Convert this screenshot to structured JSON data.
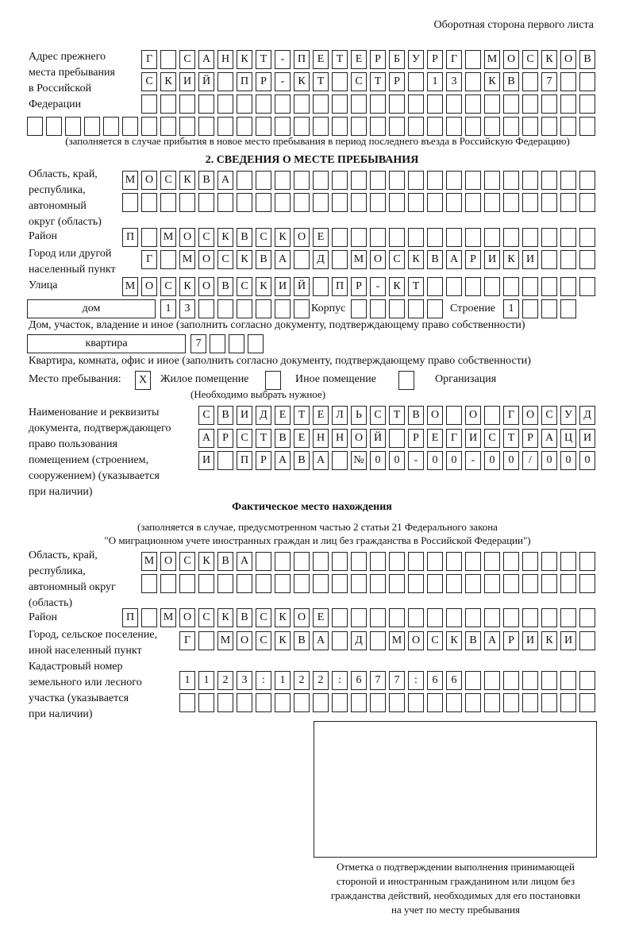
{
  "header": {
    "page_side": "Оборотная сторона первого листа"
  },
  "prev_address": {
    "label": [
      "Адрес прежнего",
      "места пребывания",
      "в Российской",
      "Федерации"
    ],
    "rows": [
      [
        "Г",
        "",
        "С",
        "А",
        "Н",
        "К",
        "Т",
        "-",
        "П",
        "Е",
        "Т",
        "Е",
        "Р",
        "Б",
        "У",
        "Р",
        "Г",
        "",
        "М",
        "О",
        "С",
        "К",
        "О",
        "В"
      ],
      [
        "С",
        "К",
        "И",
        "Й",
        "",
        "П",
        "Р",
        "-",
        "К",
        "Т",
        "",
        "С",
        "Т",
        "Р",
        "",
        "1",
        "3",
        "",
        "К",
        "В",
        "",
        "7",
        "",
        ""
      ],
      [
        "",
        "",
        "",
        "",
        "",
        "",
        "",
        "",
        "",
        "",
        "",
        "",
        "",
        "",
        "",
        "",
        "",
        "",
        "",
        "",
        "",
        "",
        "",
        ""
      ],
      [
        "",
        "",
        "",
        "",
        "",
        "",
        "",
        "",
        "",
        "",
        "",
        "",
        "",
        "",
        "",
        "",
        "",
        "",
        "",
        "",
        "",
        "",
        "",
        "",
        "",
        "",
        "",
        "",
        "",
        ""
      ]
    ],
    "note": "(заполняется в случае прибытия в новое место пребывания в период последнего въезда в Российскую Федерацию)"
  },
  "section2": {
    "title": "2. СВЕДЕНИЯ О МЕСТЕ ПРЕБЫВАНИЯ",
    "region_label": [
      "Область, край,",
      "республика,",
      "автономный",
      "округ (область)"
    ],
    "region_rows": [
      [
        "М",
        "О",
        "С",
        "К",
        "В",
        "А",
        "",
        "",
        "",
        "",
        "",
        "",
        "",
        "",
        "",
        "",
        "",
        "",
        "",
        "",
        "",
        "",
        "",
        "",
        ""
      ],
      [
        "",
        "",
        "",
        "",
        "",
        "",
        "",
        "",
        "",
        "",
        "",
        "",
        "",
        "",
        "",
        "",
        "",
        "",
        "",
        "",
        "",
        "",
        "",
        "",
        ""
      ]
    ],
    "district_label": "Район",
    "district_row": [
      "П",
      "",
      "М",
      "О",
      "С",
      "К",
      "В",
      "С",
      "К",
      "О",
      "Е",
      "",
      "",
      "",
      "",
      "",
      "",
      "",
      "",
      "",
      "",
      "",
      "",
      "",
      ""
    ],
    "city_label": [
      "Город или другой",
      "населенный пункт"
    ],
    "city_row": [
      "Г",
      "",
      "М",
      "О",
      "С",
      "К",
      "В",
      "А",
      "",
      "Д",
      "",
      "М",
      "О",
      "С",
      "К",
      "В",
      "А",
      "Р",
      "И",
      "К",
      "И",
      "",
      "",
      ""
    ],
    "street_label": "Улица",
    "street_row": [
      "М",
      "О",
      "С",
      "К",
      "О",
      "В",
      "С",
      "К",
      "И",
      "Й",
      "",
      "П",
      "Р",
      "-",
      "К",
      "Т",
      "",
      "",
      "",
      "",
      "",
      "",
      "",
      "",
      ""
    ],
    "house_type": "дом",
    "house_cells": [
      "1",
      "3",
      "",
      "",
      "",
      "",
      "",
      ""
    ],
    "korpus_label": "Корпус",
    "korpus_cells": [
      "",
      "",
      "",
      "",
      ""
    ],
    "building_label": "Строение",
    "building_cells": [
      "1",
      "",
      "",
      ""
    ],
    "house_note": "Дом, участок, владение и иное (заполнить согласно документу, подтверждающему право собственности)",
    "apt_type": "квартира",
    "apt_cells": [
      "7",
      "",
      "",
      ""
    ],
    "apt_note": "Квартира, комната, офис и иное (заполнить согласно документу, подтверждающему право собственности)",
    "stay_label": "Место пребывания:",
    "stay_options": [
      {
        "label": "Жилое помещение",
        "mark": "Х"
      },
      {
        "label": "Иное помещение",
        "mark": ""
      },
      {
        "label": "Организация",
        "mark": ""
      }
    ],
    "stay_note": "(Необходимо выбрать нужное)",
    "doc_label": [
      "Наименование и реквизиты",
      "документа, подтверждающего",
      "право пользования",
      "помещением (строением,",
      "сооружением) (указывается",
      "при наличии)"
    ],
    "doc_rows": [
      [
        "С",
        "В",
        "И",
        "Д",
        "Е",
        "Т",
        "Е",
        "Л",
        "Ь",
        "С",
        "Т",
        "В",
        "О",
        "",
        "О",
        "",
        "Г",
        "О",
        "С",
        "У",
        "Д"
      ],
      [
        "А",
        "Р",
        "С",
        "Т",
        "В",
        "Е",
        "Н",
        "Н",
        "О",
        "Й",
        "",
        "Р",
        "Е",
        "Г",
        "И",
        "С",
        "Т",
        "Р",
        "А",
        "Ц",
        "И"
      ],
      [
        "И",
        "",
        "П",
        "Р",
        "А",
        "В",
        "А",
        "",
        "№",
        "0",
        "0",
        "-",
        "0",
        "0",
        "-",
        "0",
        "0",
        "/",
        "0",
        "0",
        "0"
      ]
    ]
  },
  "actual": {
    "title": "Фактическое место нахождения",
    "note": [
      "(заполняется в случае, предусмотренном частью 2 статьи 21 Федерального закона",
      "\"О миграционном учете иностранных граждан и лиц без гражданства в Российской Федерации\")"
    ],
    "region_label": [
      "Область, край,",
      "республика,",
      "автономный округ",
      "(область)"
    ],
    "region_rows": [
      [
        "М",
        "О",
        "С",
        "К",
        "В",
        "А",
        "",
        "",
        "",
        "",
        "",
        "",
        "",
        "",
        "",
        "",
        "",
        "",
        "",
        "",
        "",
        "",
        "",
        ""
      ],
      [
        "",
        "",
        "",
        "",
        "",
        "",
        "",
        "",
        "",
        "",
        "",
        "",
        "",
        "",
        "",
        "",
        "",
        "",
        "",
        "",
        "",
        "",
        "",
        ""
      ]
    ],
    "district_label": "Район",
    "district_row": [
      "П",
      "",
      "М",
      "О",
      "С",
      "К",
      "В",
      "С",
      "К",
      "О",
      "Е",
      "",
      "",
      "",
      "",
      "",
      "",
      "",
      "",
      "",
      "",
      "",
      "",
      "",
      ""
    ],
    "city_label": [
      "Город, сельское поселение,",
      "иной населенный пункт"
    ],
    "city_row": [
      "Г",
      "",
      "М",
      "О",
      "С",
      "К",
      "В",
      "А",
      "",
      "Д",
      "",
      "М",
      "О",
      "С",
      "К",
      "В",
      "А",
      "Р",
      "И",
      "К",
      "И",
      ""
    ],
    "cadastre_label": [
      "Кадастровый номер",
      "земельного или лесного",
      "участка (указывается",
      "при наличии)"
    ],
    "cadastre_rows": [
      [
        "1",
        "1",
        "2",
        "3",
        ":",
        "1",
        "2",
        "2",
        ":",
        "6",
        "7",
        "7",
        ":",
        "6",
        "6",
        "",
        "",
        "",
        "",
        "",
        "",
        ""
      ],
      [
        "",
        "",
        "",
        "",
        "",
        "",
        "",
        "",
        "",
        "",
        "",
        "",
        "",
        "",
        "",
        "",
        "",
        "",
        "",
        "",
        "",
        ""
      ]
    ],
    "stamp_caption": [
      "Отметка о подтверждении выполнения принимающей",
      "стороной и иностранным гражданином или лицом без",
      "гражданства действий, необходимых для его постановки",
      "на учет по месту пребывания"
    ]
  }
}
